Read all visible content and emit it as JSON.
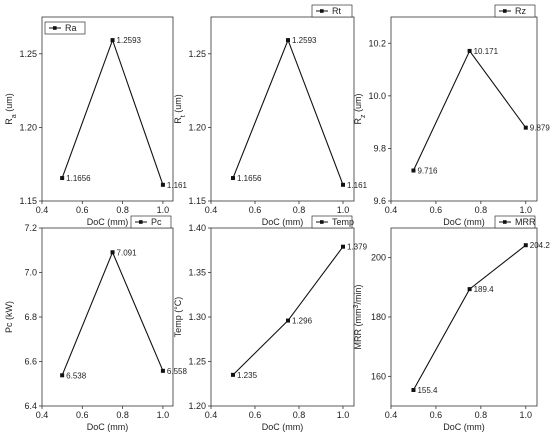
{
  "chart_data": [
    {
      "type": "line",
      "legend": "Ra",
      "legend_placement": "top-left",
      "xlabel": "DoC (mm)",
      "ylabel": {
        "main": "R",
        "sub": "a",
        "rest": " (um)"
      },
      "x": [
        0.5,
        0.75,
        1.0
      ],
      "values": [
        1.1656,
        1.2593,
        1.161
      ],
      "data_labels": [
        "1.1656",
        "1.2593",
        "1.161"
      ],
      "xlim": [
        0.4,
        1.05
      ],
      "ylim": [
        1.15,
        1.275
      ],
      "xticks": [
        0.4,
        0.6,
        0.8,
        1.0
      ],
      "xtick_labels": [
        "0.4",
        "0.6",
        "0.8",
        "1.0"
      ],
      "yticks": [
        1.15,
        1.2,
        1.25
      ],
      "ytick_labels": [
        "1.15",
        "1.20",
        "1.25"
      ],
      "grid": false
    },
    {
      "type": "line",
      "legend": "Rt",
      "legend_placement": "top-right",
      "xlabel": "DoC (mm)",
      "ylabel": {
        "main": "R",
        "sub": "t",
        "rest": " (um)"
      },
      "x": [
        0.5,
        0.75,
        1.0
      ],
      "values": [
        1.1656,
        1.2593,
        1.161
      ],
      "data_labels": [
        "1.1656",
        "1.2593",
        "1.161"
      ],
      "xlim": [
        0.4,
        1.05
      ],
      "ylim": [
        1.15,
        1.275
      ],
      "xticks": [
        0.4,
        0.6,
        0.8,
        1.0
      ],
      "xtick_labels": [
        "0.4",
        "0.6",
        "0.8",
        "1.0"
      ],
      "yticks": [
        1.15,
        1.2,
        1.25
      ],
      "ytick_labels": [
        "1.15",
        "1.20",
        "1.25"
      ],
      "grid": false
    },
    {
      "type": "line",
      "legend": "Rz",
      "legend_placement": "top-right",
      "xlabel": "DoC (mm)",
      "ylabel": {
        "main": "R",
        "sub": "z",
        "rest": " (um)"
      },
      "x": [
        0.5,
        0.75,
        1.0
      ],
      "values": [
        9.716,
        10.171,
        9.879
      ],
      "data_labels": [
        "9.716",
        "10.171",
        "9.879"
      ],
      "xlim": [
        0.4,
        1.05
      ],
      "ylim": [
        9.6,
        10.3
      ],
      "xticks": [
        0.4,
        0.6,
        0.8,
        1.0
      ],
      "xtick_labels": [
        "0.4",
        "0.6",
        "0.8",
        "1.0"
      ],
      "yticks": [
        9.6,
        9.8,
        10.0,
        10.2
      ],
      "ytick_labels": [
        "9.6",
        "9.8",
        "10.0",
        "10.2"
      ],
      "grid": false
    },
    {
      "type": "line",
      "legend": "Pc",
      "legend_placement": "top-right",
      "xlabel": "DoC (mm)",
      "ylabel": {
        "main": "Pc (kW)",
        "sub": "",
        "rest": ""
      },
      "x": [
        0.5,
        0.75,
        1.0
      ],
      "values": [
        6.538,
        7.091,
        6.558
      ],
      "data_labels": [
        "6.538",
        "7.091",
        "6.558"
      ],
      "xlim": [
        0.4,
        1.05
      ],
      "ylim": [
        6.4,
        7.2
      ],
      "xticks": [
        0.4,
        0.6,
        0.8,
        1.0
      ],
      "xtick_labels": [
        "0.4",
        "0.6",
        "0.8",
        "1.0"
      ],
      "yticks": [
        6.4,
        6.6,
        6.8,
        7.0,
        7.2
      ],
      "ytick_labels": [
        "6.4",
        "6.6",
        "6.8",
        "7.0",
        "7.2"
      ],
      "grid": false
    },
    {
      "type": "line",
      "legend": "Temp",
      "legend_placement": "top-right",
      "xlabel": "DoC (mm)",
      "ylabel": {
        "main": "Temp (°C)",
        "sub": "",
        "rest": ""
      },
      "x": [
        0.5,
        0.75,
        1.0
      ],
      "values": [
        1.235,
        1.296,
        1.379
      ],
      "data_labels": [
        "1.235",
        "1.296",
        "1.379"
      ],
      "xlim": [
        0.4,
        1.05
      ],
      "ylim": [
        1.2,
        1.4
      ],
      "xticks": [
        0.4,
        0.6,
        0.8,
        1.0
      ],
      "xtick_labels": [
        "0.4",
        "0.6",
        "0.8",
        "1.0"
      ],
      "yticks": [
        1.2,
        1.25,
        1.3,
        1.35,
        1.4
      ],
      "ytick_labels": [
        "1.20",
        "1.25",
        "1.30",
        "1.35",
        "1.40"
      ],
      "grid": false
    },
    {
      "type": "line",
      "legend": "MRR",
      "legend_placement": "top-right",
      "xlabel": "DoC (mm)",
      "ylabel": {
        "main": "MRR (mm",
        "sup": "3",
        "rest": "/min)"
      },
      "x": [
        0.5,
        0.75,
        1.0
      ],
      "values": [
        155.4,
        189.4,
        204.2
      ],
      "data_labels": [
        "155.4",
        "189.4",
        "204.2"
      ],
      "xlim": [
        0.4,
        1.05
      ],
      "ylim": [
        150,
        210
      ],
      "xticks": [
        0.4,
        0.6,
        0.8,
        1.0
      ],
      "xtick_labels": [
        "0.4",
        "0.6",
        "0.8",
        "1.0"
      ],
      "yticks": [
        160,
        180,
        200
      ],
      "ytick_labels": [
        "160",
        "180",
        "200"
      ],
      "grid": false
    }
  ]
}
